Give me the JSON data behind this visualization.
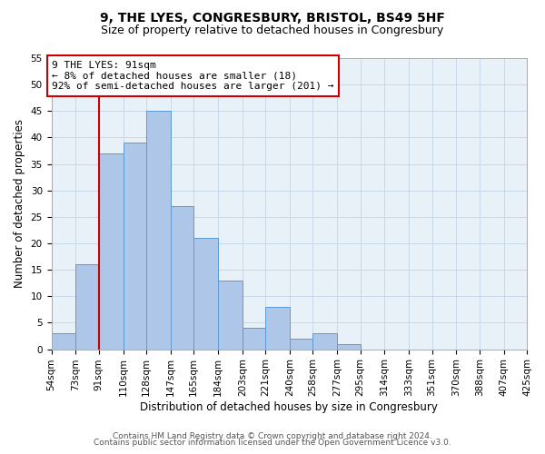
{
  "title": "9, THE LYES, CONGRESBURY, BRISTOL, BS49 5HF",
  "subtitle": "Size of property relative to detached houses in Congresbury",
  "xlabel": "Distribution of detached houses by size in Congresbury",
  "ylabel": "Number of detached properties",
  "bin_edges": [
    54,
    73,
    91,
    110,
    128,
    147,
    165,
    184,
    203,
    221,
    240,
    258,
    277,
    295,
    314,
    333,
    351,
    370,
    388,
    407,
    425
  ],
  "bin_counts": [
    3,
    16,
    37,
    39,
    45,
    27,
    21,
    13,
    4,
    8,
    2,
    3,
    1,
    0,
    0,
    0,
    0,
    0,
    0,
    0
  ],
  "bar_color": "#aec6e8",
  "bar_edge_color": "#5b9bd5",
  "reference_line_x": 91,
  "reference_line_color": "#cc0000",
  "annotation_text": "9 THE LYES: 91sqm\n← 8% of detached houses are smaller (18)\n92% of semi-detached houses are larger (201) →",
  "annotation_box_edge_color": "#cc0000",
  "annotation_box_face_color": "#ffffff",
  "ylim": [
    0,
    55
  ],
  "yticks": [
    0,
    5,
    10,
    15,
    20,
    25,
    30,
    35,
    40,
    45,
    50,
    55
  ],
  "tick_labels": [
    "54sqm",
    "73sqm",
    "91sqm",
    "110sqm",
    "128sqm",
    "147sqm",
    "165sqm",
    "184sqm",
    "203sqm",
    "221sqm",
    "240sqm",
    "258sqm",
    "277sqm",
    "295sqm",
    "314sqm",
    "333sqm",
    "351sqm",
    "370sqm",
    "388sqm",
    "407sqm",
    "425sqm"
  ],
  "footer_line1": "Contains HM Land Registry data © Crown copyright and database right 2024.",
  "footer_line2": "Contains public sector information licensed under the Open Government Licence v3.0.",
  "background_color": "#ffffff",
  "plot_bg_color": "#e8f0f8",
  "grid_color": "#c8d8e8",
  "title_fontsize": 10,
  "subtitle_fontsize": 9,
  "axis_label_fontsize": 8.5,
  "tick_fontsize": 7.5,
  "annotation_fontsize": 8,
  "footer_fontsize": 6.5
}
